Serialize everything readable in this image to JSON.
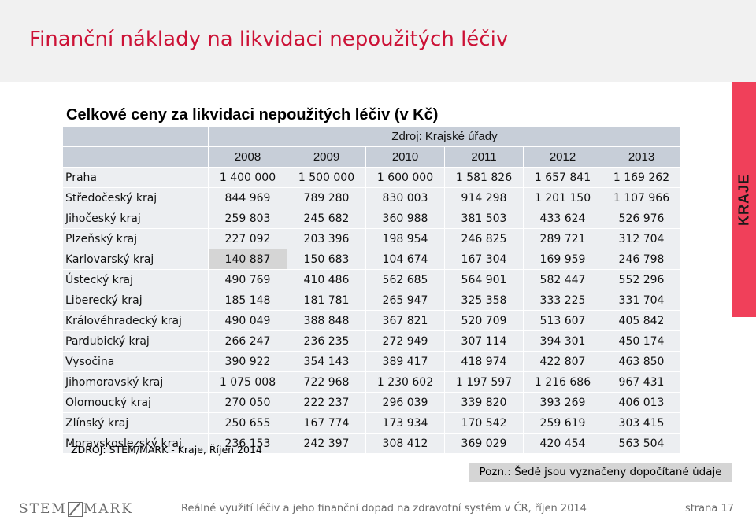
{
  "slide": {
    "title": "Finanční náklady na likvidaci nepoužitých léčiv",
    "side_tab": "KRAJE"
  },
  "table": {
    "title": "Celkové ceny za likvidaci nepoužitých léčiv (v Kč)",
    "source_header": "Zdroj: Krajské úřady",
    "years": [
      "2008",
      "2009",
      "2010",
      "2011",
      "2012",
      "2013"
    ],
    "rows": [
      {
        "region": "Praha",
        "values": [
          "1 400 000",
          "1 500 000",
          "1 600 000",
          "1 581 826",
          "1 657 841",
          "1 169 262"
        ]
      },
      {
        "region": "Středočeský kraj",
        "values": [
          "844 969",
          "789 280",
          "830 003",
          "914 298",
          "1 201 150",
          "1 107 966"
        ]
      },
      {
        "region": "Jihočeský kraj",
        "values": [
          "259 803",
          "245 682",
          "360 988",
          "381 503",
          "433 624",
          "526 976"
        ]
      },
      {
        "region": "Plzeňský kraj",
        "values": [
          "227 092",
          "203 396",
          "198 954",
          "246 825",
          "289 721",
          "312 704"
        ]
      },
      {
        "region": "Karlovarský kraj",
        "values": [
          "140 887",
          "150 683",
          "104 674",
          "167 304",
          "169 959",
          "246 798"
        ]
      },
      {
        "region": "Ústecký kraj",
        "values": [
          "490 769",
          "410 486",
          "562 685",
          "564 901",
          "582 447",
          "552 296"
        ]
      },
      {
        "region": "Liberecký kraj",
        "values": [
          "185 148",
          "181 781",
          "265 947",
          "325 358",
          "333 225",
          "331 704"
        ]
      },
      {
        "region": "Královéhradecký kraj",
        "values": [
          "490 049",
          "388 848",
          "367 821",
          "520 709",
          "513 607",
          "405 842"
        ]
      },
      {
        "region": "Pardubický kraj",
        "values": [
          "266 247",
          "236 235",
          "272 949",
          "307 114",
          "394 301",
          "450 174"
        ]
      },
      {
        "region": "Vysočina",
        "values": [
          "390 922",
          "354 143",
          "389 417",
          "418 974",
          "422 807",
          "463 850"
        ]
      },
      {
        "region": "Jihomoravský kraj",
        "values": [
          "1 075 008",
          "722 968",
          "1 230 602",
          "1 197 597",
          "1 216 686",
          "967 431"
        ]
      },
      {
        "region": "Olomoucký kraj",
        "values": [
          "270 050",
          "222 237",
          "296 039",
          "339 820",
          "393 269",
          "406 013"
        ]
      },
      {
        "region": "Zlínský kraj",
        "values": [
          "250 655",
          "167 774",
          "173 934",
          "170 542",
          "259 619",
          "303 415"
        ]
      },
      {
        "region": "Moravskoslezský kraj",
        "values": [
          "236 153",
          "242 397",
          "308 412",
          "369 029",
          "420 454",
          "563 504"
        ]
      }
    ],
    "source_note": "ZDROJ:  STEM/MARK - Kraje, Říjen 2014",
    "note": "Pozn.: Šedě jsou vyznačeny dopočítané údaje"
  },
  "footer": {
    "logo_left": "STEM",
    "logo_right": "MARK",
    "text": "Reálné využití léčiv a jeho finanční dopad na zdravotní systém v ČR, říjen 2014",
    "page": "strana 17"
  }
}
